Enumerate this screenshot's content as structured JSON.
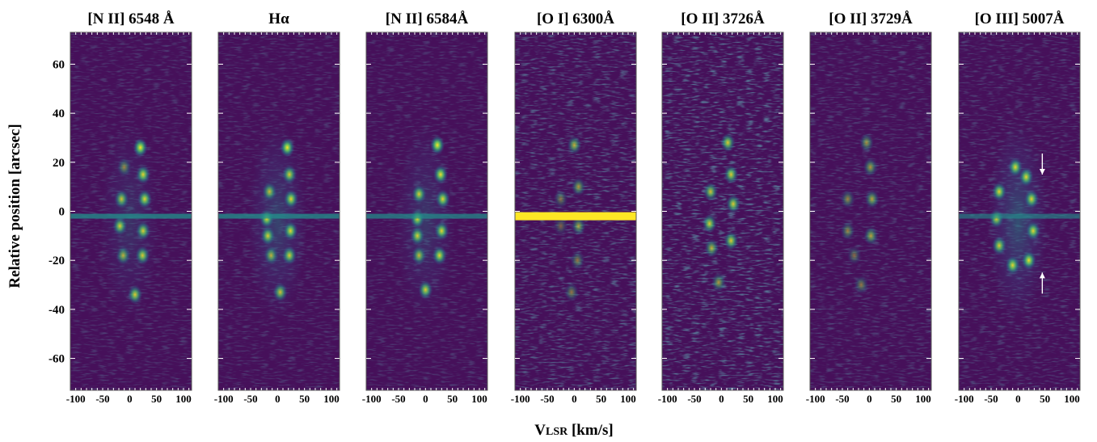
{
  "figure": {
    "ylabel": "Relative position [arcsec]",
    "xlabel_main": "V",
    "xlabel_sub": "LSR",
    "xlabel_unit": " [km/s]"
  },
  "colors": {
    "background": "#46105a",
    "colormap": [
      "#440154",
      "#3b528b",
      "#21918c",
      "#5ec962",
      "#fde725"
    ],
    "arrow": "#ffffff"
  },
  "chart_data": {
    "type": "heatmap",
    "description_of_axes": "position-velocity diagrams",
    "x": {
      "label": "VLSR [km/s]",
      "lim": [
        -110,
        115
      ],
      "ticks": [
        -100,
        -50,
        0,
        50,
        100
      ]
    },
    "y": {
      "label": "Relative position [arcsec]",
      "lim": [
        -73,
        73
      ],
      "ticks": [
        60,
        40,
        20,
        0,
        -20,
        -40,
        -60
      ]
    },
    "panels": [
      {
        "title": "[N II] 6548 Å",
        "xticks": [
          "-100",
          "-50",
          "0",
          "50",
          "100"
        ],
        "noise": 0.25,
        "streak": 0.55,
        "halo": 0.3,
        "knots": [
          [
            20,
            26,
            1.0
          ],
          [
            25,
            15,
            0.9
          ],
          [
            28,
            5,
            0.9
          ],
          [
            25,
            -8,
            0.85
          ],
          [
            24,
            -18,
            0.85
          ],
          [
            -15,
            5,
            0.8
          ],
          [
            -18,
            -6,
            0.85
          ],
          [
            -12,
            -18,
            0.7
          ],
          [
            -10,
            18,
            0.5
          ],
          [
            10,
            -34,
            0.85
          ]
        ]
      },
      {
        "title": "Hα",
        "xticks": [
          "-100",
          "-50",
          "0",
          "50",
          "100"
        ],
        "noise": 0.25,
        "streak": 0.55,
        "halo": 0.45,
        "knots": [
          [
            18,
            26,
            1.0
          ],
          [
            22,
            15,
            0.85
          ],
          [
            25,
            5,
            0.9
          ],
          [
            24,
            -8,
            0.9
          ],
          [
            22,
            -18,
            0.85
          ],
          [
            -15,
            8,
            0.75
          ],
          [
            -20,
            -3,
            0.9
          ],
          [
            -18,
            -10,
            0.85
          ],
          [
            -12,
            -18,
            0.7
          ],
          [
            5,
            -33,
            0.8
          ]
        ]
      },
      {
        "title": "[N II] 6584Å",
        "xticks": [
          "-100",
          "-50",
          "0",
          "50",
          "100"
        ],
        "noise": 0.25,
        "streak": 0.5,
        "halo": 0.35,
        "knots": [
          [
            22,
            27,
            1.0
          ],
          [
            28,
            15,
            0.95
          ],
          [
            32,
            5,
            0.9
          ],
          [
            30,
            -8,
            0.9
          ],
          [
            26,
            -18,
            0.9
          ],
          [
            -12,
            7,
            0.85
          ],
          [
            -15,
            -3,
            0.9
          ],
          [
            -15,
            -10,
            0.85
          ],
          [
            -12,
            -18,
            0.75
          ],
          [
            0,
            -32,
            0.85
          ]
        ]
      },
      {
        "title": "[O I] 6300Å",
        "xticks": [
          "-100",
          "-50",
          "0",
          "50",
          "100"
        ],
        "noise": 0.45,
        "streak": 1.0,
        "halo": 0.0,
        "knots": [
          [
            0,
            27,
            0.7
          ],
          [
            8,
            10,
            0.6
          ],
          [
            8,
            -6,
            0.6
          ],
          [
            6,
            -20,
            0.45
          ],
          [
            -25,
            5,
            0.4
          ],
          [
            -25,
            -6,
            0.35
          ],
          [
            -5,
            -33,
            0.45
          ]
        ]
      },
      {
        "title": "[O II] 3726Å",
        "xticks": [
          "-100",
          "-50",
          "0",
          "50",
          "100"
        ],
        "noise": 0.55,
        "streak": 0.0,
        "halo": 0.0,
        "knots": [
          [
            12,
            28,
            0.85
          ],
          [
            18,
            15,
            0.85
          ],
          [
            22,
            3,
            0.85
          ],
          [
            18,
            -12,
            0.85
          ],
          [
            -20,
            8,
            0.8
          ],
          [
            -22,
            -5,
            0.85
          ],
          [
            -18,
            -15,
            0.7
          ],
          [
            -5,
            -29,
            0.6
          ]
        ]
      },
      {
        "title": "[O II] 3729Å",
        "xticks": [
          "-100",
          "-50",
          "0",
          "50",
          "100"
        ],
        "noise": 0.3,
        "streak": 0.0,
        "halo": 0.0,
        "knots": [
          [
            -5,
            28,
            0.55
          ],
          [
            2,
            18,
            0.6
          ],
          [
            5,
            5,
            0.65
          ],
          [
            3,
            -10,
            0.65
          ],
          [
            -40,
            5,
            0.5
          ],
          [
            -40,
            -8,
            0.5
          ],
          [
            -28,
            -18,
            0.4
          ],
          [
            -15,
            -30,
            0.45
          ]
        ]
      },
      {
        "title": "[O III] 5007Å",
        "xticks": [
          "-100",
          "-50",
          "0",
          "50",
          "100"
        ],
        "noise": 0.3,
        "streak": 0.4,
        "halo": 0.55,
        "knots": [
          [
            -5,
            18,
            0.9
          ],
          [
            15,
            14,
            0.9
          ],
          [
            25,
            5,
            0.9
          ],
          [
            28,
            -8,
            0.9
          ],
          [
            20,
            -20,
            0.95
          ],
          [
            -35,
            8,
            0.9
          ],
          [
            -40,
            -3,
            0.85
          ],
          [
            -35,
            -14,
            0.85
          ],
          [
            -10,
            -22,
            0.9
          ]
        ],
        "arrows": [
          {
            "x": 45,
            "y": 15,
            "direction": "down"
          },
          {
            "x": 45,
            "y": -25,
            "direction": "up"
          }
        ]
      }
    ]
  }
}
